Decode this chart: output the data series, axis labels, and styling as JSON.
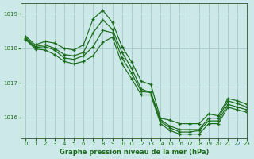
{
  "title": "Graphe pression niveau de la mer (hPa)",
  "bg_color": "#cce8e8",
  "grid_color": "#aacccc",
  "line_color": "#1a6b1a",
  "xlim": [
    -0.5,
    23
  ],
  "ylim": [
    1015.4,
    1019.3
  ],
  "yticks": [
    1016,
    1017,
    1018,
    1019
  ],
  "xticks": [
    0,
    1,
    2,
    3,
    4,
    5,
    6,
    7,
    8,
    9,
    10,
    11,
    12,
    13,
    14,
    15,
    16,
    17,
    18,
    19,
    20,
    21,
    22,
    23
  ],
  "series": [
    {
      "x": [
        0,
        1,
        2,
        3,
        4,
        5,
        6,
        7,
        8,
        9,
        10,
        11,
        12,
        13,
        14,
        15,
        16,
        17,
        18,
        19,
        20,
        21,
        22,
        23
      ],
      "y": [
        1018.35,
        1018.1,
        1018.2,
        1018.15,
        1018.0,
        1017.95,
        1018.1,
        1018.85,
        1019.1,
        1018.75,
        1018.05,
        1017.6,
        1017.05,
        1016.95,
        1015.98,
        1015.92,
        1015.82,
        1015.82,
        1015.82,
        1016.1,
        1016.05,
        1016.55,
        1016.48,
        1016.38
      ]
    },
    {
      "x": [
        0,
        1,
        2,
        3,
        4,
        5,
        6,
        7,
        8,
        9,
        10,
        11,
        12,
        13,
        14,
        15,
        16,
        17,
        18,
        19,
        20,
        21,
        22,
        23
      ],
      "y": [
        1018.3,
        1018.05,
        1018.1,
        1018.0,
        1017.82,
        1017.78,
        1017.88,
        1018.45,
        1018.82,
        1018.55,
        1017.88,
        1017.42,
        1016.82,
        1016.72,
        1015.93,
        1015.75,
        1015.65,
        1015.65,
        1015.65,
        1015.98,
        1015.98,
        1016.48,
        1016.4,
        1016.3
      ]
    },
    {
      "x": [
        0,
        1,
        2,
        3,
        4,
        5,
        6,
        7,
        8,
        9,
        10,
        11,
        12,
        13,
        14,
        15,
        16,
        17,
        18,
        19,
        20,
        21,
        22,
        23
      ],
      "y": [
        1018.28,
        1018.02,
        1018.05,
        1017.95,
        1017.72,
        1017.68,
        1017.78,
        1018.05,
        1018.52,
        1018.45,
        1017.72,
        1017.28,
        1016.75,
        1016.72,
        1015.88,
        1015.7,
        1015.58,
        1015.58,
        1015.62,
        1015.9,
        1015.9,
        1016.38,
        1016.3,
        1016.22
      ]
    },
    {
      "x": [
        0,
        1,
        2,
        3,
        4,
        5,
        6,
        7,
        8,
        9,
        10,
        11,
        12,
        13,
        14,
        15,
        16,
        17,
        18,
        19,
        20,
        21,
        22,
        23
      ],
      "y": [
        1018.25,
        1017.98,
        1017.95,
        1017.82,
        1017.62,
        1017.55,
        1017.62,
        1017.78,
        1018.18,
        1018.32,
        1017.55,
        1017.12,
        1016.65,
        1016.65,
        1015.82,
        1015.62,
        1015.52,
        1015.52,
        1015.52,
        1015.82,
        1015.82,
        1016.3,
        1016.22,
        1016.15
      ]
    }
  ]
}
